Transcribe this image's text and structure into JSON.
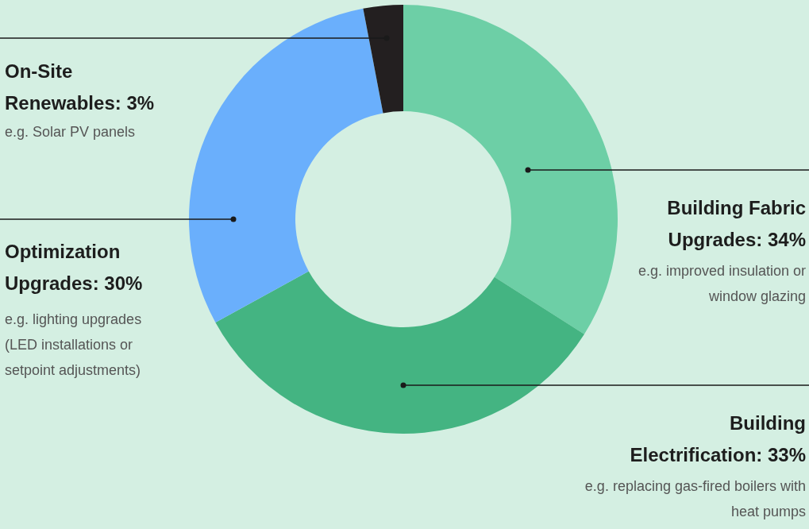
{
  "chart_data": {
    "type": "donut",
    "categories": [
      "Building Fabric Upgrades: 34%",
      "Building Electrification: 33%",
      "Optimization Upgrades: 30%",
      "On-Site Renewables: 3%"
    ],
    "values": [
      34,
      33,
      30,
      3
    ],
    "colors": [
      "#6dcfa6",
      "#44b482",
      "#6aaffc",
      "#231f20"
    ],
    "annotations": [
      {
        "text": "e.g. improved insulation or window glazing",
        "x": "Building Fabric Upgrades: 34%"
      },
      {
        "text": "e.g. replacing gas-fired boilers with heat pumps",
        "x": "Building Electrification: 33%"
      },
      {
        "text": "e.g. lighting upgrades (LED installations or setpoint adjustments)",
        "x": "Optimization Upgrades: 30%"
      },
      {
        "text": "e.g. Solar PV panels",
        "x": "On-Site Renewables: 3%"
      }
    ]
  }
}
